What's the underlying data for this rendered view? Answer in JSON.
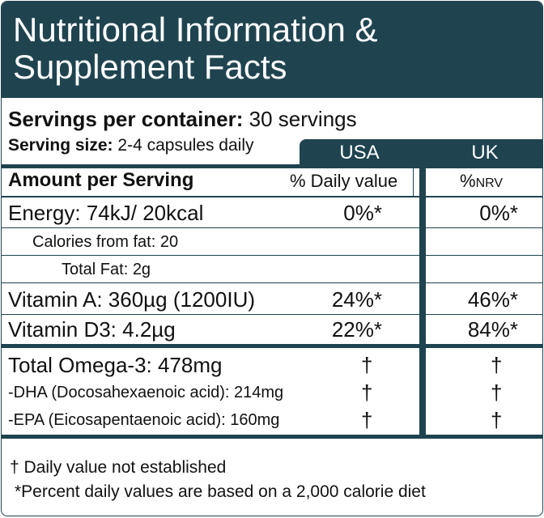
{
  "header": {
    "title_line1": "Nutritional Information &",
    "title_line2": "Supplement Facts"
  },
  "servings": {
    "per_container_label": "Servings per container:",
    "per_container_value": "30 servings",
    "size_label": "Serving size:",
    "size_value": "2-4 capsules daily"
  },
  "columns": {
    "usa": "USA",
    "uk": "UK",
    "amount_label": "Amount per Serving",
    "usa_sub": "% Daily value",
    "uk_sub_prefix": "%",
    "uk_sub_suffix": "NRV"
  },
  "rows": [
    {
      "name": "Energy:  74kJ/ 20kcal",
      "usa": "0%*",
      "uk": "0%*"
    },
    {
      "name": "Calories from fat: 20",
      "usa": "",
      "uk": ""
    },
    {
      "name": "Total Fat: 2g",
      "usa": "",
      "uk": ""
    },
    {
      "name": "Vitamin A: 360µg (1200IU)",
      "usa": "24%*",
      "uk": "46%*"
    },
    {
      "name": "Vitamin D3: 4.2µg",
      "usa": "22%*",
      "uk": "84%*"
    }
  ],
  "omega": [
    {
      "name": "Total Omega-3: 478mg",
      "usa": "†",
      "uk": "†"
    },
    {
      "name": "-DHA (Docosahexaenoic acid): 214mg",
      "usa": "†",
      "uk": "†"
    },
    {
      "name": "-EPA (Eicosapentaenoic acid): 160mg",
      "usa": "†",
      "uk": "†"
    }
  ],
  "footnotes": {
    "dagger": "† Daily value not established",
    "percent": "*Percent daily values are based on a 2,000 calorie diet"
  },
  "colors": {
    "primary": "#1f4450",
    "text": "#111111",
    "background": "#ffffff"
  }
}
